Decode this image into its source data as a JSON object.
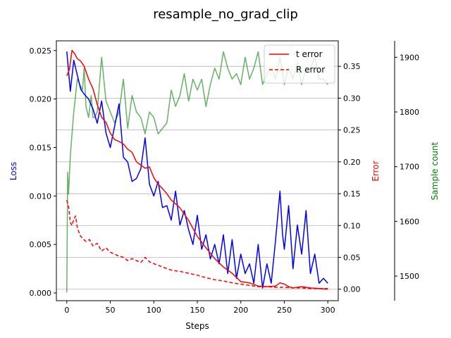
{
  "chart_data": {
    "type": "line",
    "title": "resample_no_grad_clip",
    "xlabel": "Steps",
    "x_ticks": [
      0,
      50,
      100,
      150,
      200,
      250,
      300
    ],
    "xlim": [
      -12,
      312
    ],
    "grid": true,
    "legend_position": "top-right",
    "axes": {
      "loss": {
        "label": "Loss",
        "color": "#0000ff",
        "ylim": [
          -0.0008,
          0.026
        ],
        "ticks": [
          0.0,
          0.005,
          0.01,
          0.015,
          0.02,
          0.025
        ],
        "tick_labels": [
          "0.000",
          "0.005",
          "0.010",
          "0.015",
          "0.020",
          "0.025"
        ]
      },
      "error": {
        "label": "Error",
        "color": "#ff0000",
        "ylim": [
          -0.018,
          0.39
        ],
        "ticks": [
          0.0,
          0.05,
          0.1,
          0.15,
          0.2,
          0.25,
          0.3,
          0.35
        ],
        "tick_labels": [
          "0.00",
          "0.05",
          "0.10",
          "0.15",
          "0.20",
          "0.25",
          "0.30",
          "0.35"
        ]
      },
      "samples": {
        "label": "Sample count",
        "color": "#008000",
        "ylim": [
          1455,
          1930
        ],
        "ticks": [
          1500,
          1600,
          1700,
          1800,
          1900
        ],
        "tick_labels": [
          "1500",
          "1600",
          "1700",
          "1800",
          "1900"
        ]
      }
    },
    "series": [
      {
        "name": "Loss",
        "axis": "loss",
        "color": "#0000ff",
        "style": "solid",
        "in_legend": false,
        "x": [
          0,
          4,
          8,
          12,
          16,
          20,
          25,
          30,
          35,
          40,
          45,
          50,
          55,
          60,
          65,
          70,
          75,
          80,
          85,
          90,
          95,
          100,
          105,
          110,
          115,
          120,
          125,
          130,
          135,
          140,
          145,
          150,
          155,
          160,
          165,
          170,
          175,
          180,
          185,
          190,
          195,
          200,
          205,
          210,
          215,
          220,
          225,
          230,
          235,
          240,
          245,
          248,
          250,
          255,
          260,
          265,
          270,
          275,
          280,
          285,
          290,
          295,
          300
        ],
        "y": [
          0.0249,
          0.0208,
          0.024,
          0.0225,
          0.021,
          0.0205,
          0.02,
          0.019,
          0.0175,
          0.0198,
          0.0165,
          0.015,
          0.0172,
          0.0195,
          0.014,
          0.0135,
          0.0115,
          0.0118,
          0.0128,
          0.016,
          0.0112,
          0.01,
          0.0115,
          0.0088,
          0.009,
          0.0075,
          0.0105,
          0.007,
          0.0085,
          0.0065,
          0.005,
          0.008,
          0.0045,
          0.006,
          0.0035,
          0.005,
          0.003,
          0.006,
          0.002,
          0.0055,
          0.0015,
          0.004,
          0.002,
          0.003,
          0.001,
          0.005,
          0.0005,
          0.003,
          0.001,
          0.0055,
          0.0105,
          0.006,
          0.0045,
          0.009,
          0.0025,
          0.007,
          0.004,
          0.0085,
          0.002,
          0.004,
          0.001,
          0.0015,
          0.001
        ]
      },
      {
        "name": "t error",
        "axis": "error",
        "color": "#ff0000",
        "style": "solid",
        "in_legend": true,
        "x": [
          0,
          3,
          6,
          9,
          12,
          16,
          20,
          25,
          30,
          35,
          40,
          45,
          50,
          55,
          60,
          65,
          70,
          75,
          80,
          85,
          90,
          95,
          100,
          105,
          110,
          115,
          120,
          130,
          140,
          150,
          160,
          170,
          180,
          190,
          200,
          210,
          220,
          230,
          240,
          245,
          250,
          255,
          260,
          270,
          280,
          290,
          300
        ],
        "y": [
          0.335,
          0.345,
          0.375,
          0.37,
          0.362,
          0.358,
          0.35,
          0.33,
          0.315,
          0.29,
          0.27,
          0.262,
          0.245,
          0.235,
          0.232,
          0.228,
          0.22,
          0.215,
          0.2,
          0.195,
          0.19,
          0.192,
          0.175,
          0.165,
          0.158,
          0.15,
          0.14,
          0.128,
          0.108,
          0.083,
          0.065,
          0.048,
          0.035,
          0.025,
          0.012,
          0.01,
          0.005,
          0.004,
          0.005,
          0.01,
          0.008,
          0.004,
          0.002,
          0.004,
          0.002,
          0.001,
          0.0
        ]
      },
      {
        "name": "R error",
        "axis": "error",
        "color": "#ff0000",
        "style": "dashed",
        "in_legend": true,
        "x": [
          0,
          2,
          4,
          6,
          8,
          10,
          12,
          15,
          18,
          22,
          26,
          30,
          35,
          40,
          45,
          50,
          55,
          60,
          65,
          70,
          75,
          80,
          85,
          90,
          95,
          100,
          110,
          120,
          130,
          140,
          150,
          160,
          170,
          180,
          190,
          200,
          210,
          220,
          230,
          240,
          250,
          260,
          270,
          280,
          290,
          300
        ],
        "y": [
          0.14,
          0.13,
          0.105,
          0.1,
          0.11,
          0.115,
          0.098,
          0.085,
          0.08,
          0.075,
          0.078,
          0.068,
          0.072,
          0.06,
          0.065,
          0.058,
          0.055,
          0.052,
          0.05,
          0.045,
          0.048,
          0.045,
          0.042,
          0.05,
          0.043,
          0.04,
          0.035,
          0.03,
          0.028,
          0.025,
          0.022,
          0.018,
          0.015,
          0.013,
          0.01,
          0.008,
          0.006,
          0.004,
          0.004,
          0.003,
          0.003,
          0.002,
          0.002,
          0.001,
          0.001,
          0.001
        ]
      },
      {
        "name": "Sample count",
        "axis": "samples",
        "color": "#008000",
        "style": "solid",
        "in_legend": false,
        "x": [
          0,
          1,
          2,
          4,
          6,
          8,
          10,
          12,
          15,
          18,
          20,
          22,
          25,
          28,
          30,
          32,
          35,
          40,
          45,
          50,
          55,
          60,
          65,
          70,
          75,
          80,
          85,
          90,
          95,
          100,
          105,
          110,
          115,
          120,
          125,
          130,
          135,
          140,
          145,
          150,
          155,
          160,
          165,
          170,
          175,
          180,
          185,
          190,
          195,
          200,
          205,
          210,
          215,
          220,
          225,
          230,
          235,
          240,
          245,
          250,
          255,
          260,
          265,
          270,
          275,
          280,
          285,
          290,
          295,
          300
        ],
        "y": [
          1470,
          1690,
          1650,
          1720,
          1760,
          1800,
          1830,
          1860,
          1850,
          1840,
          1880,
          1810,
          1790,
          1830,
          1790,
          1790,
          1800,
          1900,
          1820,
          1800,
          1780,
          1800,
          1860,
          1770,
          1830,
          1800,
          1790,
          1760,
          1800,
          1790,
          1760,
          1770,
          1780,
          1840,
          1810,
          1830,
          1870,
          1820,
          1860,
          1840,
          1860,
          1810,
          1850,
          1880,
          1860,
          1910,
          1880,
          1860,
          1870,
          1850,
          1900,
          1860,
          1880,
          1910,
          1850,
          1870,
          1880,
          1860,
          1900,
          1850,
          1880,
          1860,
          1890,
          1850,
          1880,
          1880,
          1900,
          1860,
          1860,
          1850
        ]
      }
    ]
  }
}
